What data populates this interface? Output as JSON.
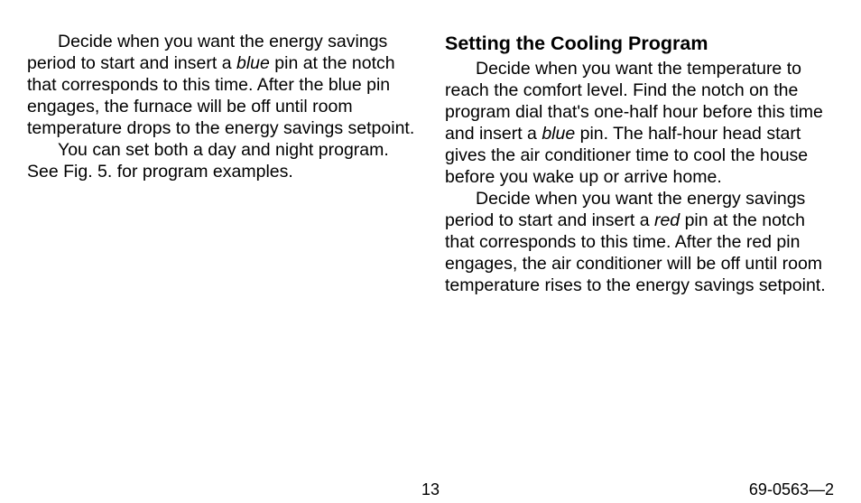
{
  "left_column": {
    "para1_a": "Decide when you want the energy savings period to start and insert a ",
    "para1_blue": "blue",
    "para1_b": " pin at the notch that corresponds to this time. After the blue pin engages, the furnace will be off until room temperature drops to the energy savings setpoint.",
    "para2": "You can set both a day and night program. See Fig. 5. for program examples."
  },
  "right_column": {
    "heading": "Setting the Cooling Program",
    "para1_a": "Decide when you want the temperature to reach the comfort level. Find the notch on the program dial that's one-half hour before this time and insert a ",
    "para1_blue": "blue",
    "para1_b": " pin. The half-hour head start gives the air conditioner time to cool the house before you wake up or arrive home.",
    "para2_a": "Decide when you want the energy savings period to start and insert a ",
    "para2_red": "red",
    "para2_b": " pin at the notch that corresponds to this time. After the red pin engages, the air conditioner will be off until room temperature rises to the energy savings setpoint."
  },
  "footer": {
    "page_number": "13",
    "doc_id": "69-0563—2"
  }
}
